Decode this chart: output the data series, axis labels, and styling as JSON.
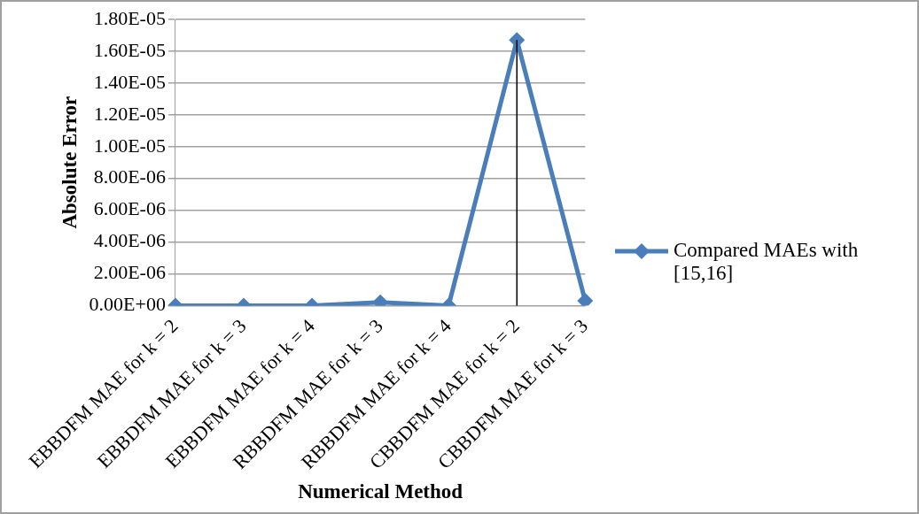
{
  "chart_data": {
    "type": "line",
    "xlabel": "Numerical Method",
    "ylabel": "Absolute Error",
    "categories": [
      "EBBDFM MAE for k = 2",
      "EBBDFM MAE for k = 3",
      "EBBDFM MAE for k = 4",
      "RBBDFM MAE for k = 3",
      "RBBDFM MAE for k = 4",
      "CBBDFM MAE for k = 2",
      "CBBDFM MAE for k = 3"
    ],
    "series": [
      {
        "name": "Compared MAEs with [15,16]",
        "color": "#4a7ebb",
        "values": [
          0,
          0,
          0,
          2e-07,
          0,
          1.67e-05,
          3e-07
        ],
        "errors": [
          null,
          null,
          null,
          null,
          null,
          [
            0,
            1.67e-05
          ],
          null
        ]
      }
    ],
    "ylim": [
      0,
      1.8e-05
    ],
    "yticks": [
      {
        "value": 0,
        "label": "0.00E+00"
      },
      {
        "value": 2e-06,
        "label": "2.00E-06"
      },
      {
        "value": 4e-06,
        "label": "4.00E-06"
      },
      {
        "value": 6e-06,
        "label": "6.00E-06"
      },
      {
        "value": 8e-06,
        "label": "8.00E-06"
      },
      {
        "value": 1e-05,
        "label": "1.00E-05"
      },
      {
        "value": 1.2e-05,
        "label": "1.20E-05"
      },
      {
        "value": 1.4e-05,
        "label": "1.40E-05"
      },
      {
        "value": 1.6e-05,
        "label": "1.60E-05"
      },
      {
        "value": 1.8e-05,
        "label": "1.80E-05"
      }
    ],
    "grid": "y",
    "legend": "right",
    "marker": "diamond",
    "line_style": "solid"
  }
}
